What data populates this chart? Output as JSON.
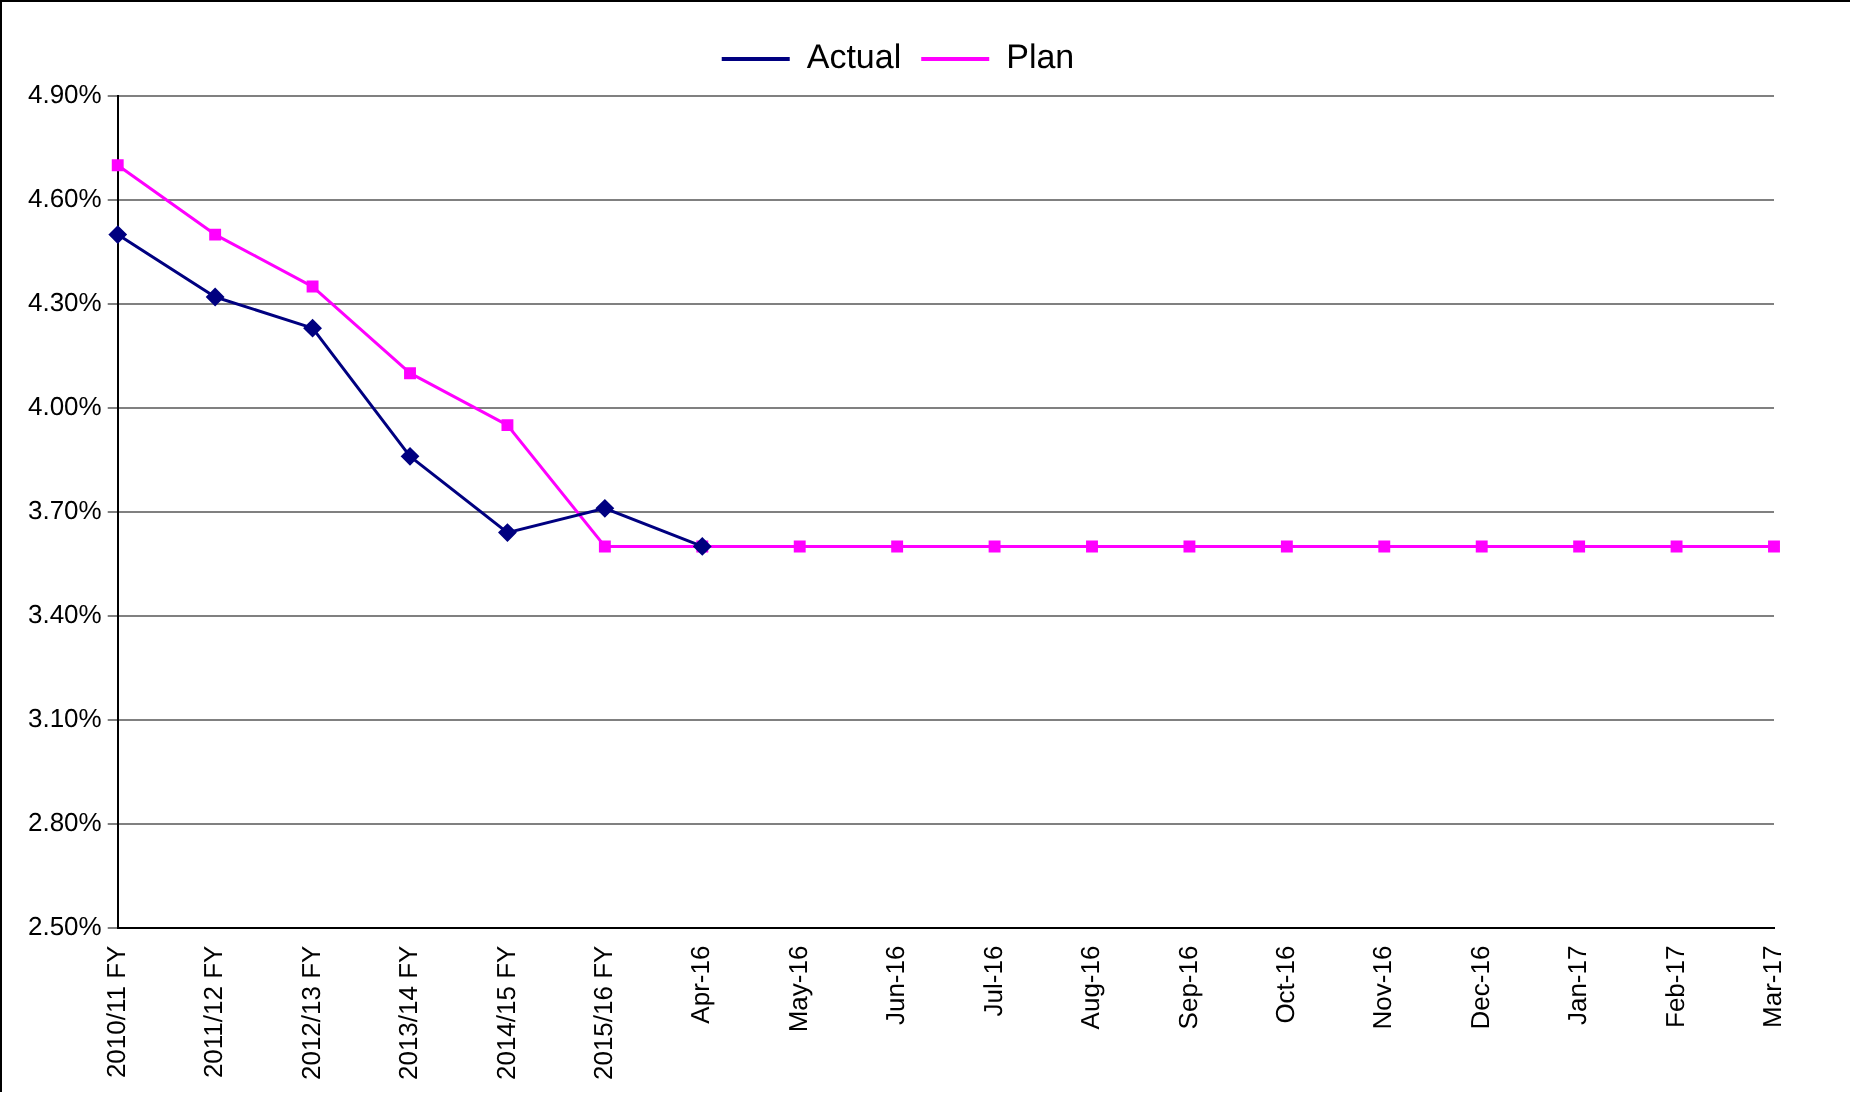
{
  "chart_data": {
    "type": "line",
    "categories": [
      "2010/11 FY",
      "2011/12 FY",
      "2012/13 FY",
      "2013/14 FY",
      "2014/15 FY",
      "2015/16 FY",
      "Apr-16",
      "May-16",
      "Jun-16",
      "Jul-16",
      "Aug-16",
      "Sep-16",
      "Oct-16",
      "Nov-16",
      "Dec-16",
      "Jan-17",
      "Feb-17",
      "Mar-17"
    ],
    "series": [
      {
        "name": "Actual",
        "color": "#000080",
        "marker": "diamond",
        "values": [
          4.5,
          4.32,
          4.23,
          3.86,
          3.64,
          3.71,
          3.6,
          null,
          null,
          null,
          null,
          null,
          null,
          null,
          null,
          null,
          null,
          null
        ]
      },
      {
        "name": "Plan",
        "color": "#ff00ff",
        "marker": "square",
        "values": [
          4.7,
          4.5,
          4.35,
          4.1,
          3.95,
          3.6,
          3.6,
          3.6,
          3.6,
          3.6,
          3.6,
          3.6,
          3.6,
          3.6,
          3.6,
          3.6,
          3.6,
          3.6
        ]
      }
    ],
    "ylim": [
      2.5,
      4.9
    ],
    "yticks": [
      {
        "value": 2.5,
        "label": "2.50%"
      },
      {
        "value": 2.8,
        "label": "2.80%"
      },
      {
        "value": 3.1,
        "label": "3.10%"
      },
      {
        "value": 3.4,
        "label": "3.40%"
      },
      {
        "value": 3.7,
        "label": "3.70%"
      },
      {
        "value": 4.0,
        "label": "4.00%"
      },
      {
        "value": 4.3,
        "label": "4.30%"
      },
      {
        "value": 4.6,
        "label": "4.60%"
      },
      {
        "value": 4.9,
        "label": "4.90%"
      }
    ],
    "grid": "y",
    "legend": "top",
    "line_style": "solid"
  }
}
